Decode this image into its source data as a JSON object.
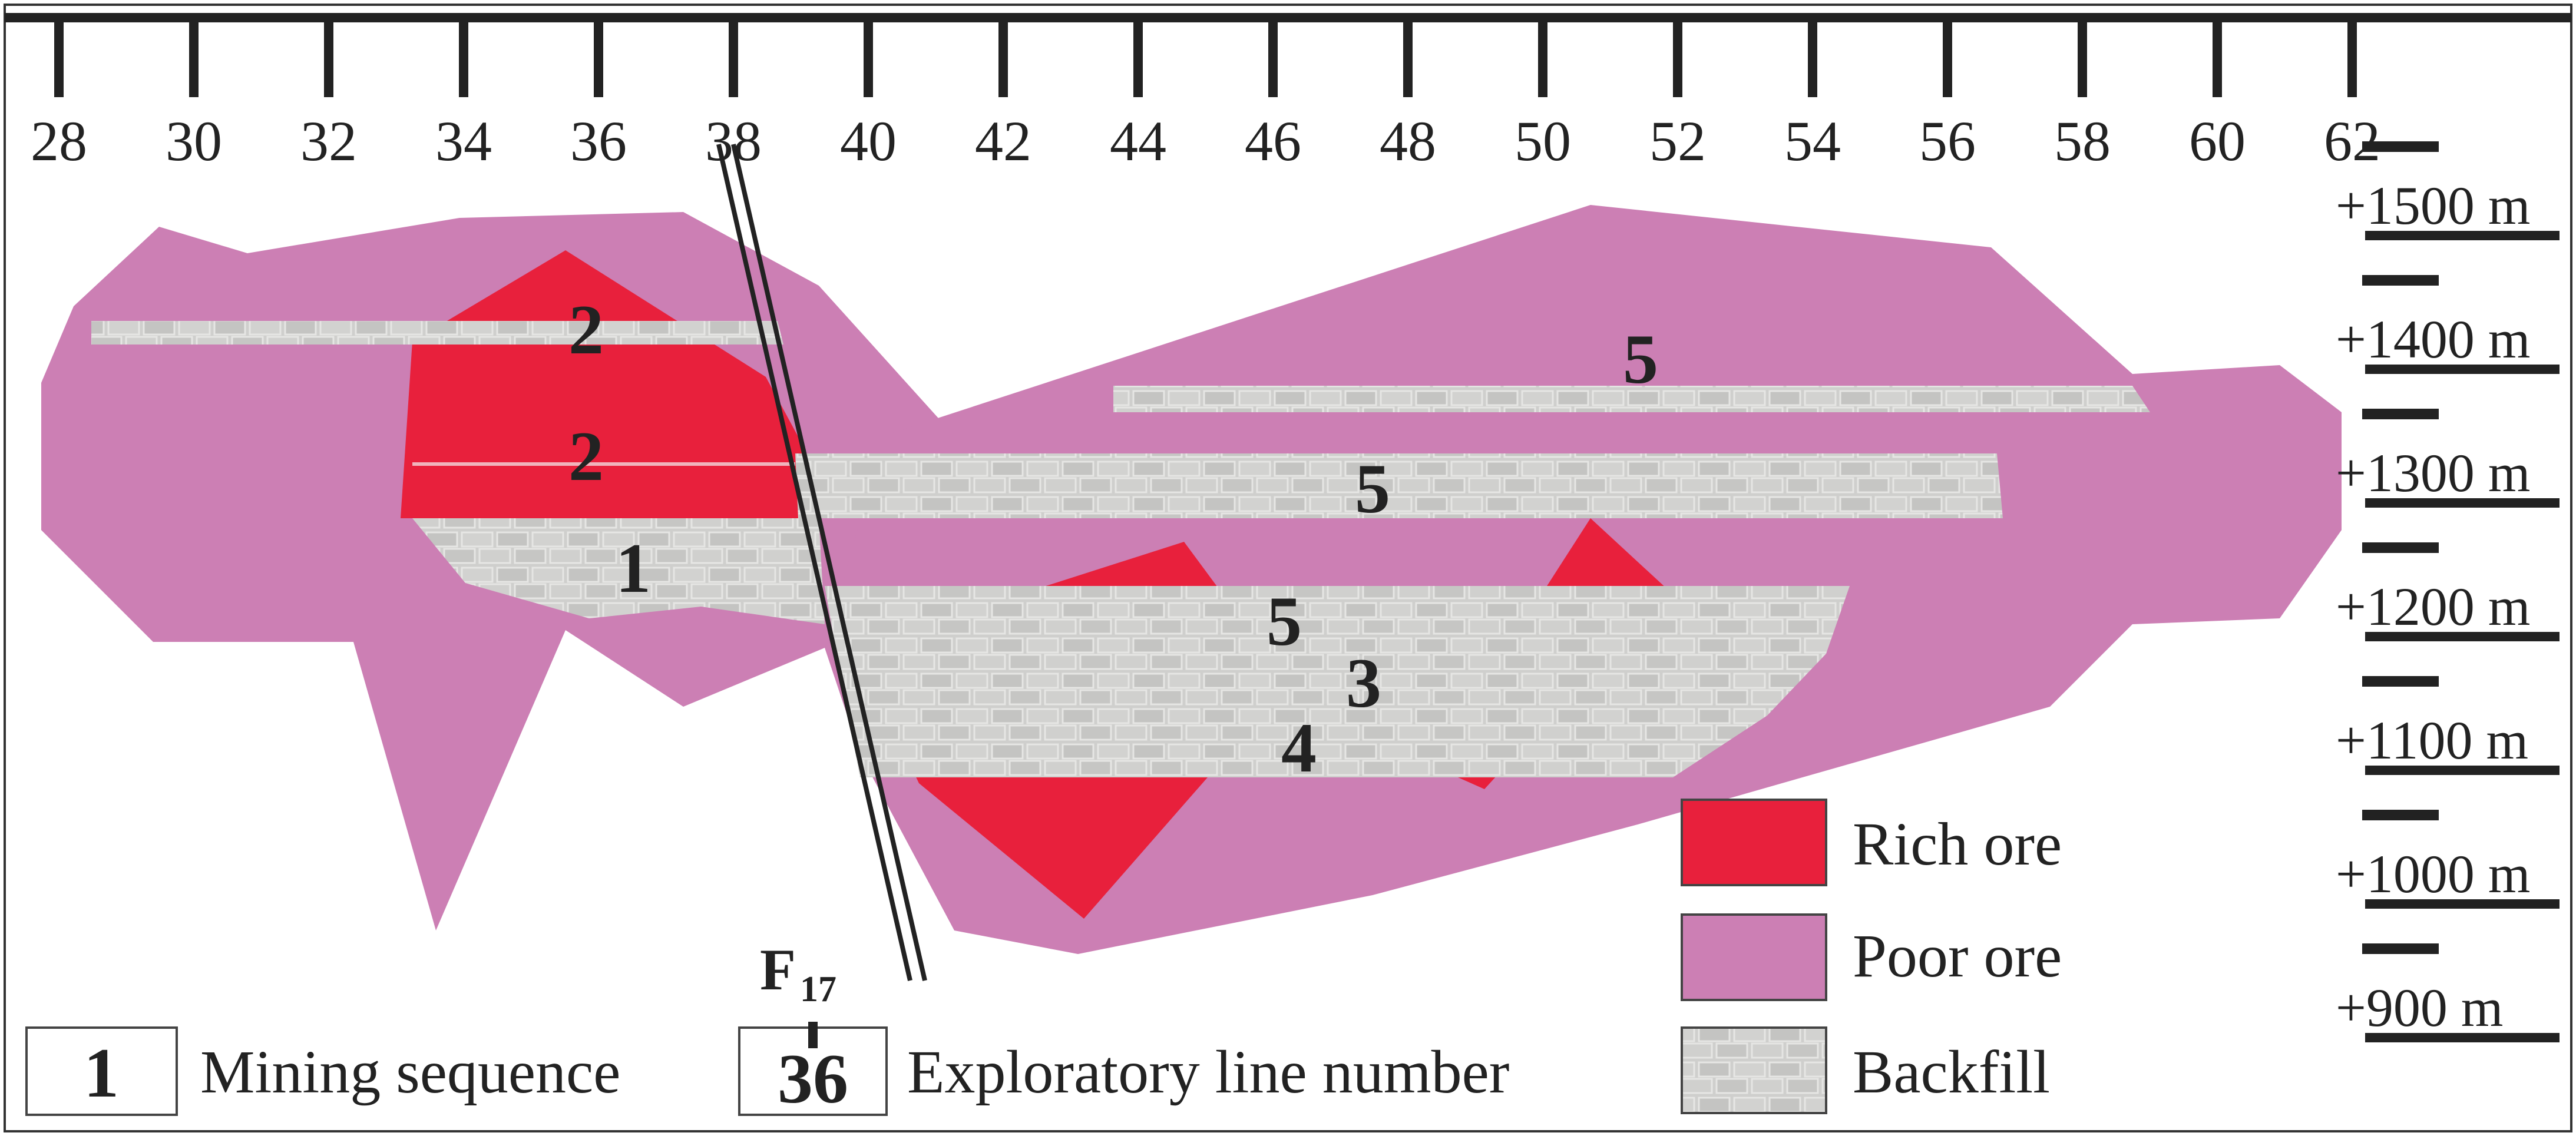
{
  "exploratory_lines": {
    "ticks": [
      "28",
      "30",
      "32",
      "34",
      "36",
      "38",
      "40",
      "42",
      "44",
      "46",
      "48",
      "50",
      "52",
      "54",
      "56",
      "58",
      "60",
      "62"
    ]
  },
  "elevations": [
    "+1500 m",
    "+1400 m",
    "+1300 m",
    "+1200 m",
    "+1100 m",
    "+1000 m",
    "+900 m"
  ],
  "fault": {
    "label": "F",
    "subscript": "17"
  },
  "mining_sequence_labels": [
    "2",
    "2",
    "1",
    "5",
    "5",
    "5",
    "3",
    "4"
  ],
  "legend": {
    "rich_ore": "Rich ore",
    "poor_ore": "Poor ore",
    "backfill": "Backfill",
    "mining_sequence_example": "1",
    "mining_sequence": "Mining sequence",
    "exploratory_line_example": "36",
    "exploratory_line": "Exploratory line number"
  },
  "colors": {
    "rich_ore": "#e8203c",
    "poor_ore": "#cc7fb4",
    "backfill": "#c8c8c6",
    "frame": "#333333"
  }
}
